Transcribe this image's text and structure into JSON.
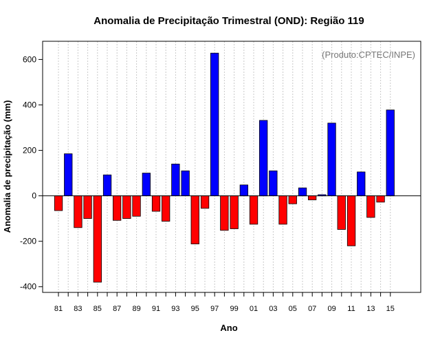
{
  "colors": {
    "positive": "#0000ff",
    "negative": "#ff0000",
    "grid": "#c8c8c8",
    "axis": "#000000",
    "annotation": "#777777"
  },
  "chart_data": {
    "type": "bar",
    "title": "Anomalia de Precipitação Trimestral (OND): Região 119",
    "xlabel": "Ano",
    "ylabel": "Anomalia de precipitação (mm)",
    "annotation": "(Produto:CPTEC/INPE)",
    "ylim": [
      -425,
      680
    ],
    "yticks": [
      -400,
      -200,
      0,
      200,
      400,
      600
    ],
    "xtick_labels": [
      "81",
      "83",
      "85",
      "87",
      "89",
      "91",
      "93",
      "95",
      "97",
      "99",
      "01",
      "03",
      "05",
      "07",
      "09",
      "11",
      "13",
      "15"
    ],
    "grid": true,
    "categories": [
      "1981",
      "1982",
      "1983",
      "1984",
      "1985",
      "1986",
      "1987",
      "1988",
      "1989",
      "1990",
      "1991",
      "1992",
      "1993",
      "1994",
      "1995",
      "1996",
      "1997",
      "1998",
      "1999",
      "2000",
      "2001",
      "2002",
      "2003",
      "2004",
      "2005",
      "2006",
      "2007",
      "2008",
      "2009",
      "2010",
      "2011",
      "2012",
      "2013",
      "2014",
      "2015"
    ],
    "values": [
      -65,
      185,
      -140,
      -100,
      -380,
      92,
      -108,
      -100,
      -90,
      100,
      -68,
      -112,
      140,
      110,
      -212,
      -55,
      628,
      -152,
      -145,
      48,
      -125,
      332,
      110,
      -125,
      -35,
      35,
      -18,
      5,
      320,
      -148,
      -220,
      105,
      -95,
      -28,
      378
    ]
  }
}
